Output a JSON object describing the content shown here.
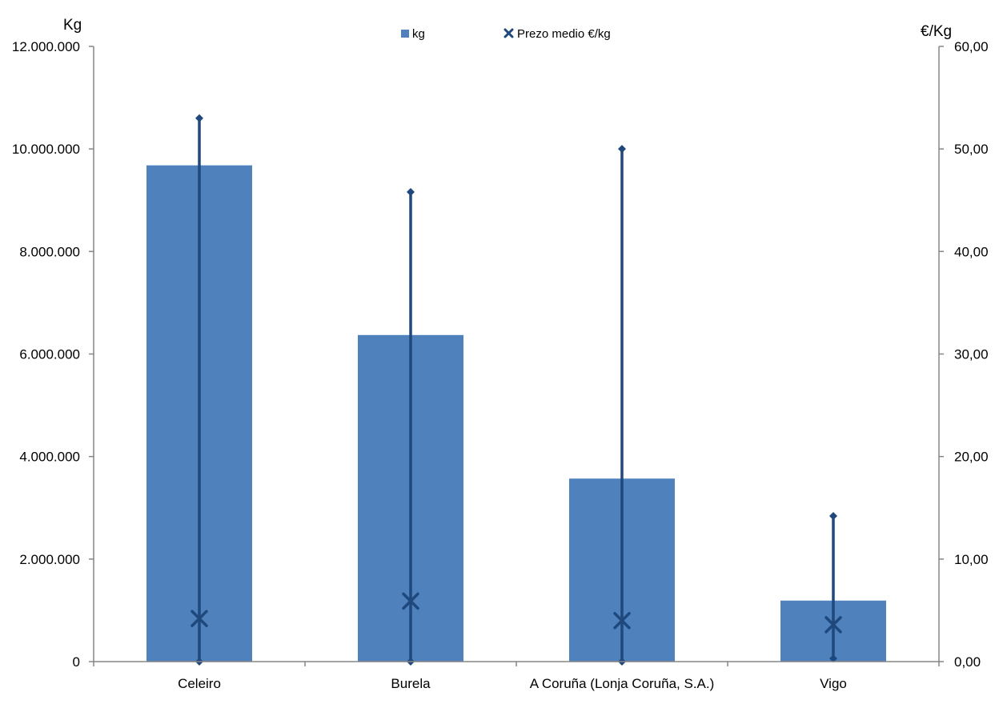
{
  "chart_data": {
    "type": "bar",
    "categories": [
      "Celeiro",
      "Burela",
      "A Coruña (Lonja Coruña, S.A.)",
      "Vigo"
    ],
    "series": [
      {
        "name": "kg",
        "type": "bar",
        "axis": "left",
        "values": [
          9680000,
          6370000,
          3570000,
          1190000
        ]
      },
      {
        "name": "Prezo medio €/kg",
        "type": "marker",
        "marker": "x",
        "axis": "right",
        "values": [
          4.2,
          5.9,
          4.0,
          3.6
        ],
        "range_min": [
          0.0,
          0.0,
          0.0,
          0.3
        ],
        "range_max": [
          53.0,
          45.8,
          50.0,
          14.2
        ]
      }
    ],
    "y_left": {
      "label": "Kg",
      "ylim": [
        0,
        12000000
      ],
      "ticks": [
        "0",
        "2.000.000",
        "4.000.000",
        "6.000.000",
        "8.000.000",
        "10.000.000",
        "12.000.000"
      ]
    },
    "y_right": {
      "label": "€/Kg",
      "ylim": [
        0,
        60
      ],
      "ticks": [
        "0,00",
        "10,00",
        "20,00",
        "30,00",
        "40,00",
        "50,00",
        "60,00"
      ]
    },
    "legend": {
      "placement": "top-center",
      "items": [
        {
          "label": "kg",
          "symbol": "square"
        },
        {
          "label": "Prezo medio €/kg",
          "symbol": "x"
        }
      ]
    },
    "colors": {
      "bar": "#4F81BD",
      "line": "#1F497D",
      "axis": "#868686"
    },
    "grid": false
  }
}
